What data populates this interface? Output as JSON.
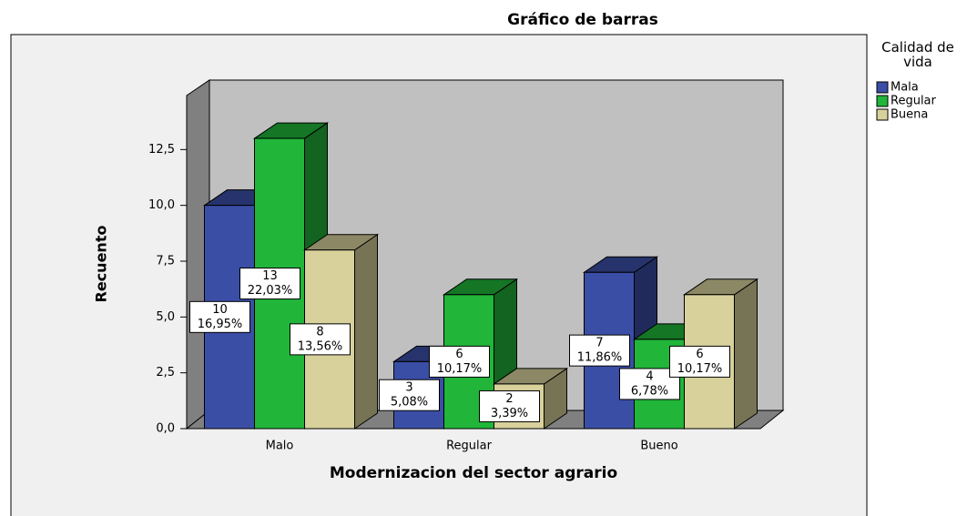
{
  "chart_data": {
    "type": "bar3d",
    "title": "Gráfico de barras",
    "x_label": "Modernizacion del sector agrario",
    "y_label": "Recuento",
    "legend_title": "Calidad de vida",
    "legend": "right",
    "categories": [
      "Malo",
      "Regular",
      "Bueno"
    ],
    "series": [
      {
        "name": "Mala",
        "color": "#3b4ea6",
        "values": [
          10,
          3,
          7
        ],
        "value_labels": [
          [
            "10",
            "16,95%"
          ],
          [
            "3",
            "5,08%"
          ],
          [
            "7",
            "11,86%"
          ]
        ]
      },
      {
        "name": "Regular",
        "color": "#21b53a",
        "values": [
          13,
          6,
          4
        ],
        "value_labels": [
          [
            "13",
            "22,03%"
          ],
          [
            "6",
            "10,17%"
          ],
          [
            "4",
            "6,78%"
          ]
        ]
      },
      {
        "name": "Buena",
        "color": "#d8d19b",
        "values": [
          8,
          2,
          6
        ],
        "value_labels": [
          [
            "8",
            "13,56%"
          ],
          [
            "2",
            "3,39%"
          ],
          [
            "6",
            "10,17%"
          ]
        ]
      }
    ],
    "ylim": [
      0,
      15
    ],
    "yticks": [
      {
        "value": 0,
        "label": "0,0"
      },
      {
        "value": 2.5,
        "label": "2,5"
      },
      {
        "value": 5,
        "label": "5,0"
      },
      {
        "value": 7.5,
        "label": "7,5"
      },
      {
        "value": 10,
        "label": "10,0"
      },
      {
        "value": 12.5,
        "label": "12,5"
      }
    ]
  }
}
